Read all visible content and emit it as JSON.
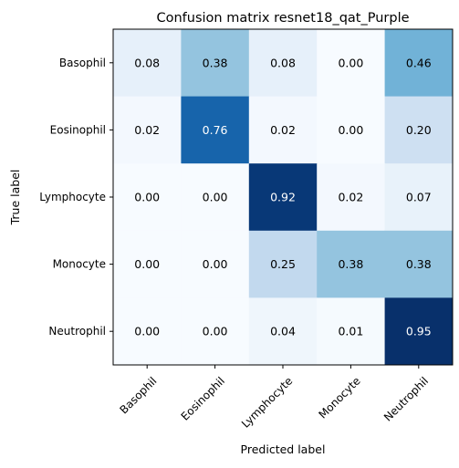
{
  "chart_data": {
    "type": "heatmap",
    "title": "Confusion matrix resnet18_qat_Purple",
    "xlabel": "Predicted label",
    "ylabel": "True label",
    "x_categories": [
      "Basophil",
      "Eosinophil",
      "Lymphocyte",
      "Monocyte",
      "Neutrophil"
    ],
    "y_categories": [
      "Basophil",
      "Eosinophil",
      "Lymphocyte",
      "Monocyte",
      "Neutrophil"
    ],
    "values": [
      [
        0.08,
        0.38,
        0.08,
        0.0,
        0.46
      ],
      [
        0.02,
        0.76,
        0.02,
        0.0,
        0.2
      ],
      [
        0.0,
        0.0,
        0.92,
        0.02,
        0.07
      ],
      [
        0.0,
        0.0,
        0.25,
        0.38,
        0.38
      ],
      [
        0.0,
        0.0,
        0.04,
        0.01,
        0.95
      ]
    ],
    "value_format": "0.00",
    "colormap": "Blues",
    "color_low": "#f7fbff",
    "color_high": "#08306b",
    "grid": false,
    "xtick_rotation": 45
  }
}
